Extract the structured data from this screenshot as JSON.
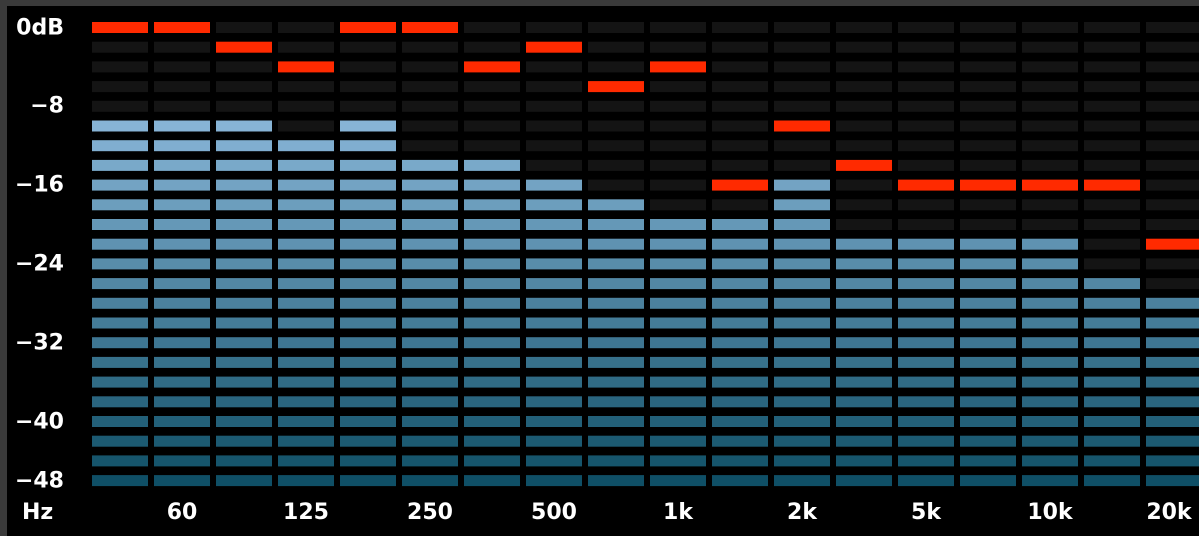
{
  "window": {
    "title": ""
  },
  "meter": {
    "unit_label": "Hz",
    "db_labels": [
      "0dB",
      "−8",
      "−16",
      "−24",
      "−32",
      "−40",
      "−48"
    ],
    "freq_labels": [
      "60",
      "125",
      "250",
      "500",
      "1k",
      "2k",
      "5k",
      "10k",
      "20k"
    ],
    "colors": {
      "background": "#000000",
      "unlit": "#141414",
      "peak": "#ff2a00",
      "bar_top": "#a8d0f5",
      "bar_bottom": "#0f4f66",
      "label": "#ffffff"
    }
  },
  "chart_data": {
    "type": "bar",
    "segment_count": 24,
    "db_range": [
      -48,
      0
    ],
    "segment_step_db": 2,
    "band_count": 18,
    "levels_segments": [
      19,
      19,
      19,
      18,
      19,
      17,
      17,
      16,
      15,
      14,
      14,
      16,
      13,
      13,
      13,
      13,
      11,
      10
    ],
    "peaks_segments": [
      23,
      23,
      22,
      21,
      23,
      23,
      21,
      22,
      20,
      21,
      15,
      18,
      16,
      15,
      15,
      15,
      15,
      12
    ],
    "y_ticks": [
      0,
      -8,
      -16,
      -24,
      -32,
      -40,
      -48
    ],
    "x_ticks": [
      "60",
      "125",
      "250",
      "500",
      "1k",
      "2k",
      "5k",
      "10k",
      "20k"
    ],
    "grid": false,
    "legend": "none"
  }
}
